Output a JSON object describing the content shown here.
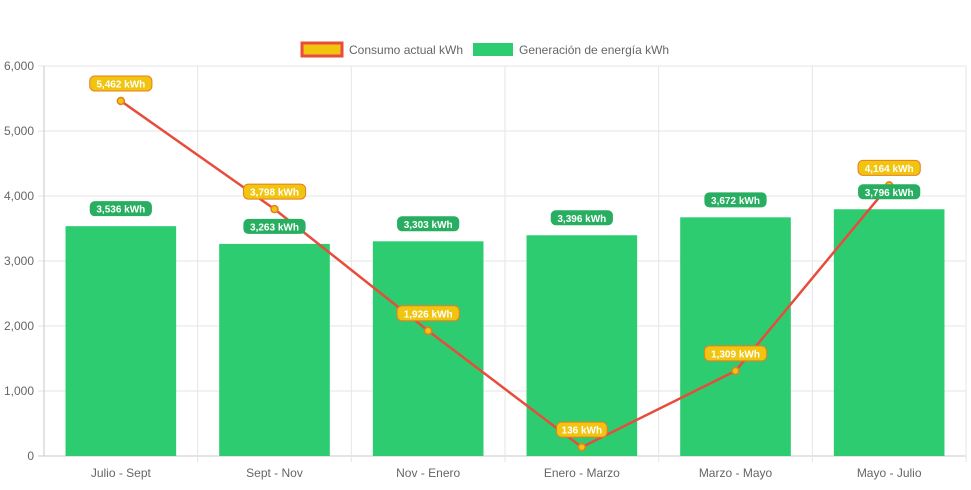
{
  "chart_data": {
    "type": "bar",
    "categories": [
      "Julio - Sept",
      "Sept - Nov",
      "Nov - Enero",
      "Enero - Marzo",
      "Marzo - Mayo",
      "Mayo - Julio"
    ],
    "y_ticks": [
      "0",
      "1,000",
      "2,000",
      "3,000",
      "4,000",
      "5,000",
      "6,000"
    ],
    "ylim": [
      0,
      6000
    ],
    "grid": true,
    "legend_position": "top-center",
    "series": [
      {
        "name": "Consumo actual kWh",
        "type": "line",
        "values": [
          5462,
          3798,
          1926,
          136,
          1309,
          4164
        ],
        "labels": [
          "5,462 kWh",
          "3,798 kWh",
          "1,926 kWh",
          "136 kWh",
          "1,309 kWh",
          "4,164 kWh"
        ],
        "color": "#e74c3c",
        "label_bg": "#f1c40f",
        "label_border": "#e67e22"
      },
      {
        "name": "Generación de energía kWh",
        "type": "bar",
        "values": [
          3536,
          3263,
          3303,
          3396,
          3672,
          3796
        ],
        "labels": [
          "3,536 kWh",
          "3,263 kWh",
          "3,303 kWh",
          "3,396 kWh",
          "3,672 kWh",
          "3,796 kWh"
        ],
        "color": "#2ecc71",
        "label_bg": "#27ae60"
      }
    ]
  }
}
